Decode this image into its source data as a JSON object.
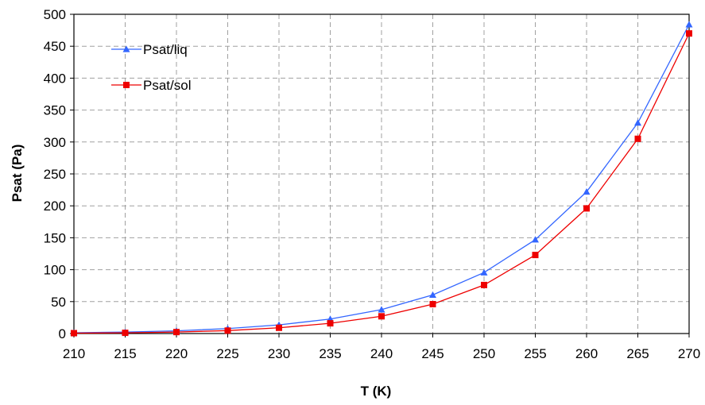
{
  "chart_data": {
    "type": "line",
    "title": "",
    "xlabel": "T (K)",
    "ylabel": "Psat (Pa)",
    "x": [
      210,
      215,
      220,
      225,
      230,
      235,
      240,
      245,
      250,
      255,
      260,
      265,
      270
    ],
    "xlim": [
      210,
      270
    ],
    "ylim": [
      0,
      500
    ],
    "xticks": [
      210,
      215,
      220,
      225,
      230,
      235,
      240,
      245,
      250,
      255,
      260,
      265,
      270
    ],
    "yticks": [
      0,
      50,
      100,
      150,
      200,
      250,
      300,
      350,
      400,
      450,
      500
    ],
    "grid": true,
    "legend_position": "top-left",
    "series": [
      {
        "name": "Psat/liq",
        "color": "#3366ff",
        "marker": "triangle",
        "values": [
          1.2,
          2.3,
          4.2,
          7.8,
          13.5,
          22.7,
          37.5,
          60.5,
          95.5,
          147,
          222,
          330,
          484
        ]
      },
      {
        "name": "Psat/sol",
        "color": "#ee0000",
        "marker": "square",
        "values": [
          0.6,
          1.1,
          2.3,
          4.6,
          9,
          16,
          27,
          46,
          76,
          123,
          196,
          305,
          470
        ]
      }
    ]
  }
}
